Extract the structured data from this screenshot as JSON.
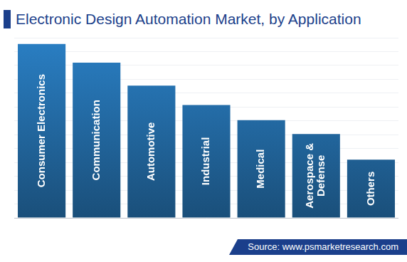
{
  "chart_data": {
    "type": "bar",
    "title": "Electronic Design Automation Market, by Application",
    "categories": [
      "Consumer Electronics",
      "Communication",
      "Automotive",
      "Industrial",
      "Medical",
      "Aerospace & Defense",
      "Others"
    ],
    "values": [
      251,
      224,
      191,
      163,
      141,
      121,
      84
    ],
    "color": "#2a7fc4",
    "ylim": [
      0,
      260
    ],
    "yticks": [
      0,
      20,
      40,
      60,
      80,
      100,
      120,
      140,
      160,
      180,
      200,
      220,
      240,
      260
    ],
    "grid": true,
    "tick_labels": false,
    "annotations": [
      "Source: www.psmarketresearch.com"
    ]
  }
}
